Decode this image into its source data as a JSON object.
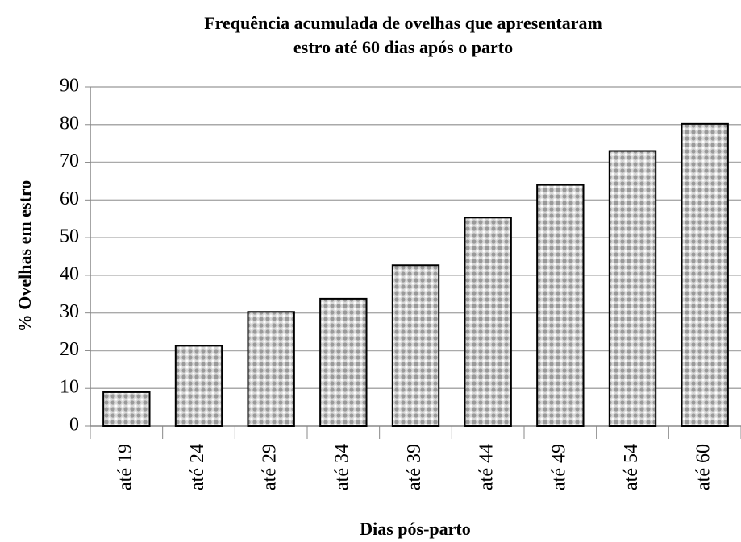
{
  "chart_data": {
    "type": "bar",
    "title": [
      "Frequência acumulada de ovelhas que apresentaram",
      "estro até 60 dias após o parto"
    ],
    "xlabel": "Dias pós-parto",
    "ylabel": "% Ovelhas em estro",
    "categories": [
      "até 19",
      "até 24",
      "até 29",
      "até 34",
      "até 39",
      "até 44",
      "até 49",
      "até 54",
      "até 60"
    ],
    "values": [
      9,
      21.3,
      30.3,
      33.8,
      42.7,
      55.3,
      64,
      73,
      80.2
    ],
    "color": "#9a9a9a",
    "ylim": [
      0,
      90
    ],
    "yticks": [
      0,
      10,
      20,
      30,
      40,
      50,
      60,
      70,
      80,
      90
    ],
    "grid": true
  }
}
